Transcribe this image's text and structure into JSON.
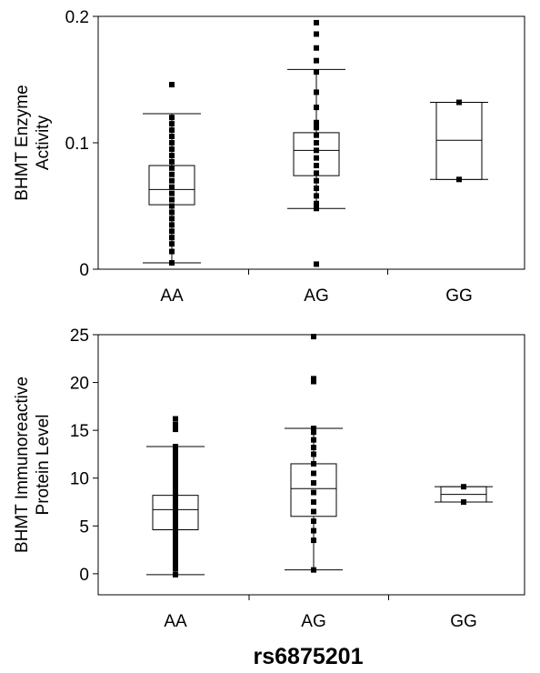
{
  "chart_data": [
    {
      "type": "box",
      "categories": [
        "AA",
        "AG",
        "GG"
      ],
      "ylabel_lines": [
        "BHMT Enzyme",
        "Activity"
      ],
      "ylim": [
        0,
        0.2
      ],
      "yticks": [
        0,
        0.1,
        0.2
      ],
      "ytick_labels": [
        "0",
        "0.1",
        "0.2"
      ],
      "boxes": [
        {
          "category": "AA",
          "q1": 0.051,
          "median": 0.063,
          "q3": 0.082,
          "whisker_low": 0.005,
          "whisker_high": 0.123,
          "points": [
            0.005,
            0.014,
            0.02,
            0.025,
            0.03,
            0.035,
            0.04,
            0.045,
            0.05,
            0.055,
            0.06,
            0.065,
            0.07,
            0.075,
            0.08,
            0.085,
            0.09,
            0.095,
            0.1,
            0.105,
            0.11,
            0.115,
            0.12,
            0.146
          ]
        },
        {
          "category": "AG",
          "q1": 0.074,
          "median": 0.094,
          "q3": 0.108,
          "whisker_low": 0.048,
          "whisker_high": 0.158,
          "points": [
            0.004,
            0.048,
            0.052,
            0.058,
            0.064,
            0.07,
            0.076,
            0.082,
            0.088,
            0.094,
            0.1,
            0.106,
            0.112,
            0.116,
            0.128,
            0.14,
            0.156,
            0.165,
            0.175,
            0.186,
            0.195
          ]
        },
        {
          "category": "GG",
          "q1": 0.071,
          "median": 0.102,
          "q3": 0.132,
          "whisker_low": 0.071,
          "whisker_high": 0.132,
          "points": [
            0.071,
            0.132
          ]
        }
      ]
    },
    {
      "type": "box",
      "categories": [
        "AA",
        "AG",
        "GG"
      ],
      "ylabel_lines": [
        "BHMT Immunoreactive",
        "Protein Level"
      ],
      "ylim": [
        -2.2,
        25
      ],
      "yticks": [
        0,
        5,
        10,
        15,
        20,
        25
      ],
      "ytick_labels": [
        "0",
        "5",
        "10",
        "15",
        "20",
        "25"
      ],
      "boxes": [
        {
          "category": "AA",
          "q1": 4.6,
          "median": 6.7,
          "q3": 8.2,
          "whisker_low": -0.1,
          "whisker_high": 13.3,
          "points": [
            -0.1,
            0.5,
            1,
            1.5,
            2,
            2.5,
            3,
            3.5,
            4,
            4.5,
            5,
            5.5,
            6,
            6.5,
            7,
            7.5,
            8,
            8.5,
            9,
            9.5,
            10,
            10.5,
            11,
            11.5,
            12,
            12.5,
            13,
            13.3,
            15.1,
            15.6,
            16.2
          ]
        },
        {
          "category": "AG",
          "q1": 6.0,
          "median": 8.9,
          "q3": 11.5,
          "whisker_low": 0.4,
          "whisker_high": 15.2,
          "points": [
            0.4,
            3.5,
            4.5,
            5.5,
            6.5,
            7.5,
            8.5,
            9.5,
            10.5,
            11.5,
            12.5,
            13.2,
            14,
            14.8,
            15.2,
            20.1,
            20.4,
            24.8
          ]
        },
        {
          "category": "GG",
          "q1": 7.5,
          "median": 8.3,
          "q3": 9.1,
          "whisker_low": 7.5,
          "whisker_high": 9.1,
          "points": [
            7.5,
            9.1
          ]
        }
      ]
    }
  ],
  "figure": {
    "xlabel": "rs6875201"
  }
}
